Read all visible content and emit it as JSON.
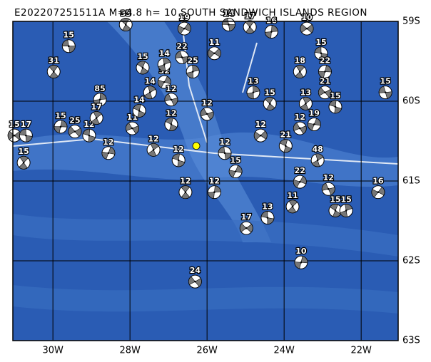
{
  "map": {
    "title": "E202207251511A  M=4.8  h= 10  SOUTH SANDWICH ISLANDS REGION",
    "lon_range": [
      -31.04,
      -21.04
    ],
    "lat_range": [
      -59,
      -63
    ],
    "lon_ticks": [
      {
        "value": -30,
        "label": "30W"
      },
      {
        "value": -28,
        "label": "28W"
      },
      {
        "value": -26,
        "label": "26W"
      },
      {
        "value": -24,
        "label": "24W"
      },
      {
        "value": -22,
        "label": "22W"
      }
    ],
    "lat_ticks": [
      {
        "value": -59,
        "label": "59S"
      },
      {
        "value": -60,
        "label": "60S"
      },
      {
        "value": -61,
        "label": "61S"
      },
      {
        "value": -62,
        "label": "62S"
      },
      {
        "value": -63,
        "label": "63S"
      }
    ],
    "epicenter": {
      "lon": -26.28,
      "lat": -60.56,
      "color": "#ffff00"
    },
    "events": [
      {
        "lon": -29.59,
        "lat": -59.31,
        "depth": 15
      },
      {
        "lon": -29.98,
        "lat": -59.63,
        "depth": 31
      },
      {
        "lon": -28.78,
        "lat": -59.98,
        "depth": 85
      },
      {
        "lon": -31.0,
        "lat": -60.43,
        "depth": 15
      },
      {
        "lon": -30.7,
        "lat": -60.43,
        "depth": 17
      },
      {
        "lon": -30.76,
        "lat": -60.77,
        "depth": 15
      },
      {
        "lon": -29.8,
        "lat": -60.32,
        "depth": 15
      },
      {
        "lon": -29.43,
        "lat": -60.38,
        "depth": 25
      },
      {
        "lon": -29.06,
        "lat": -60.43,
        "depth": 12
      },
      {
        "lon": -28.87,
        "lat": -60.21,
        "depth": 17
      },
      {
        "lon": -28.56,
        "lat": -60.65,
        "depth": 12
      },
      {
        "lon": -27.94,
        "lat": -60.34,
        "depth": 11
      },
      {
        "lon": -27.76,
        "lat": -60.12,
        "depth": 14
      },
      {
        "lon": -27.48,
        "lat": -59.89,
        "depth": 14
      },
      {
        "lon": -27.11,
        "lat": -59.76,
        "depth": 32
      },
      {
        "lon": -26.93,
        "lat": -59.98,
        "depth": 12
      },
      {
        "lon": -27.67,
        "lat": -59.58,
        "depth": 15
      },
      {
        "lon": -27.11,
        "lat": -59.54,
        "depth": 14
      },
      {
        "lon": -26.59,
        "lat": -59.09,
        "depth": 19
      },
      {
        "lon": -26.65,
        "lat": -59.45,
        "depth": 22
      },
      {
        "lon": -28.11,
        "lat": -59.04,
        "depth": 35
      },
      {
        "lon": -26.37,
        "lat": -59.63,
        "depth": 25
      },
      {
        "lon": -25.81,
        "lat": -59.4,
        "depth": 11
      },
      {
        "lon": -25.44,
        "lat": -59.04,
        "depth": 14
      },
      {
        "lon": -24.89,
        "lat": -59.07,
        "depth": 17
      },
      {
        "lon": -24.33,
        "lat": -59.13,
        "depth": 16
      },
      {
        "lon": -23.41,
        "lat": -59.09,
        "depth": 10
      },
      {
        "lon": -23.04,
        "lat": -59.4,
        "depth": 15
      },
      {
        "lon": -23.59,
        "lat": -59.63,
        "depth": 18
      },
      {
        "lon": -22.94,
        "lat": -59.63,
        "depth": 22
      },
      {
        "lon": -22.94,
        "lat": -59.89,
        "depth": 21
      },
      {
        "lon": -22.67,
        "lat": -60.07,
        "depth": 15
      },
      {
        "lon": -23.44,
        "lat": -60.03,
        "depth": 13
      },
      {
        "lon": -23.22,
        "lat": -60.29,
        "depth": 19
      },
      {
        "lon": -23.59,
        "lat": -60.34,
        "depth": 12
      },
      {
        "lon": -23.96,
        "lat": -60.56,
        "depth": 21
      },
      {
        "lon": -23.13,
        "lat": -60.74,
        "depth": 48
      },
      {
        "lon": -23.59,
        "lat": -61.01,
        "depth": 22
      },
      {
        "lon": -22.85,
        "lat": -61.1,
        "depth": 12
      },
      {
        "lon": -22.67,
        "lat": -61.37,
        "depth": 15
      },
      {
        "lon": -22.39,
        "lat": -61.37,
        "depth": 15
      },
      {
        "lon": -21.56,
        "lat": -61.14,
        "depth": 16
      },
      {
        "lon": -21.37,
        "lat": -59.89,
        "depth": 15
      },
      {
        "lon": -24.37,
        "lat": -60.03,
        "depth": 15
      },
      {
        "lon": -24.8,
        "lat": -59.89,
        "depth": 13
      },
      {
        "lon": -24.61,
        "lat": -60.43,
        "depth": 12
      },
      {
        "lon": -25.54,
        "lat": -60.65,
        "depth": 12
      },
      {
        "lon": -26.56,
        "lat": -61.14,
        "depth": 12
      },
      {
        "lon": -25.81,
        "lat": -61.14,
        "depth": 12
      },
      {
        "lon": -24.98,
        "lat": -61.59,
        "depth": 17
      },
      {
        "lon": -24.43,
        "lat": -61.46,
        "depth": 13
      },
      {
        "lon": -23.78,
        "lat": -61.32,
        "depth": 11
      },
      {
        "lon": -23.56,
        "lat": -62.02,
        "depth": 10
      },
      {
        "lon": -26.31,
        "lat": -62.26,
        "depth": 24
      },
      {
        "lon": -26.74,
        "lat": -60.74,
        "depth": 12
      },
      {
        "lon": -27.39,
        "lat": -60.61,
        "depth": 12
      },
      {
        "lon": -25.26,
        "lat": -60.88,
        "depth": 15
      },
      {
        "lon": -26.0,
        "lat": -60.16,
        "depth": 12
      },
      {
        "lon": -26.93,
        "lat": -60.29,
        "depth": 12
      }
    ]
  }
}
